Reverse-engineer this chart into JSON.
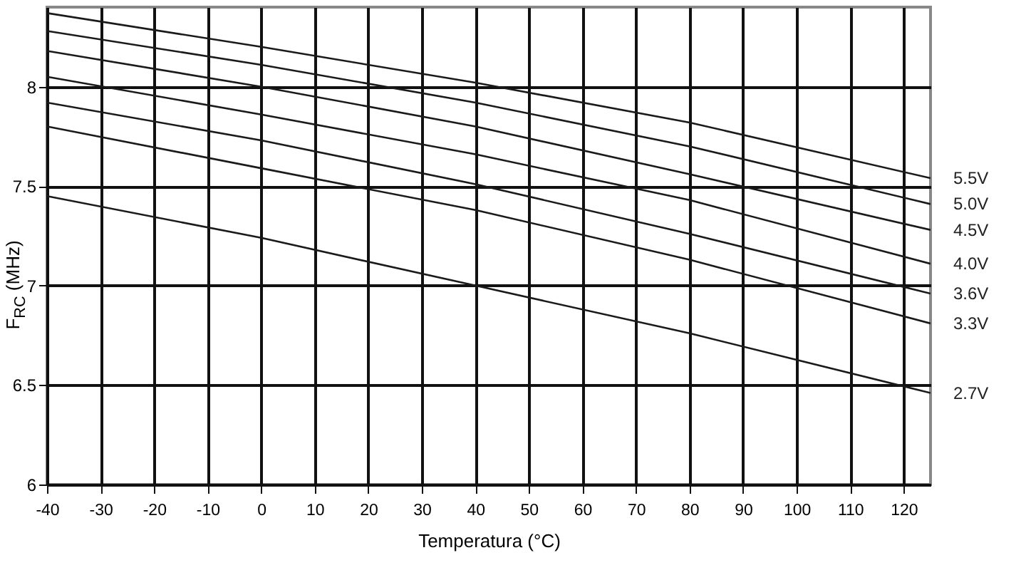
{
  "chart_data": {
    "type": "line",
    "xlabel": "Temperatura (°C)",
    "ylabel": "F$_{RC}$ (MHz)",
    "x": [
      -40,
      0,
      40,
      80,
      125
    ],
    "series": [
      {
        "name": "5.5V",
        "color": "#1a1a1a",
        "values": [
          8.37,
          8.2,
          8.02,
          7.82,
          7.54
        ]
      },
      {
        "name": "5.0V",
        "color": "#1a1a1a",
        "values": [
          8.28,
          8.11,
          7.92,
          7.7,
          7.41
        ]
      },
      {
        "name": "4.5V",
        "color": "#1a1a1a",
        "values": [
          8.18,
          8.0,
          7.8,
          7.56,
          7.28
        ]
      },
      {
        "name": "4.0V",
        "color": "#1a1a1a",
        "values": [
          8.05,
          7.86,
          7.66,
          7.43,
          7.11
        ]
      },
      {
        "name": "3.6V",
        "color": "#1a1a1a",
        "values": [
          7.92,
          7.73,
          7.51,
          7.26,
          6.96
        ]
      },
      {
        "name": "3.3V",
        "color": "#1a1a1a",
        "values": [
          7.8,
          7.59,
          7.38,
          7.13,
          6.81
        ]
      },
      {
        "name": "2.7V",
        "color": "#1a1a1a",
        "values": [
          7.45,
          7.24,
          7.0,
          6.76,
          6.46
        ]
      }
    ],
    "xlim": [
      -40,
      125
    ],
    "xticks": [
      -40,
      -30,
      -20,
      -10,
      0,
      10,
      20,
      30,
      40,
      50,
      60,
      70,
      80,
      90,
      100,
      110,
      120
    ],
    "ylim": [
      6,
      8.4
    ],
    "yticks": [
      6,
      6.5,
      7,
      7.5,
      8
    ],
    "grid": true,
    "legend": false,
    "marker": "none",
    "line_style": "solid"
  }
}
